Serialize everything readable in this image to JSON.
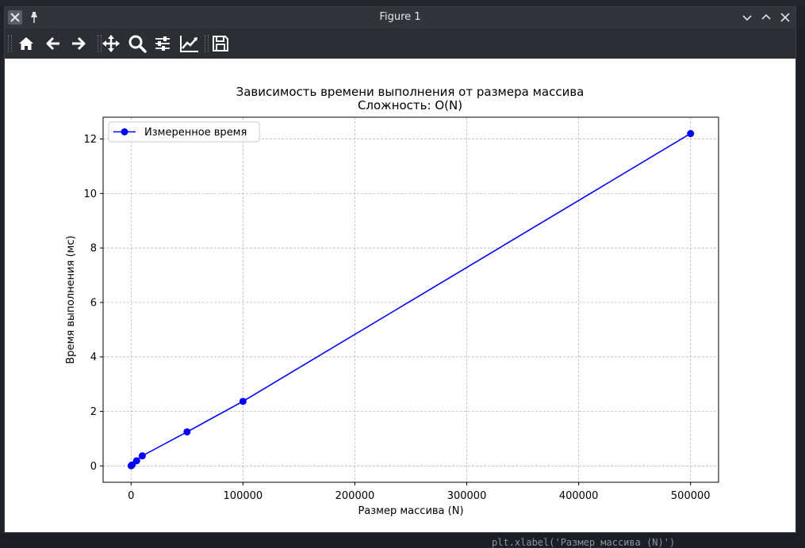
{
  "window": {
    "title": "Figure 1"
  },
  "background": {
    "code_bottom": "plt.xlabel('Размер массива (N)')"
  },
  "toolbar": {
    "buttons": [
      "home-icon",
      "back-arrow-icon",
      "forward-arrow-icon",
      "pan-icon",
      "zoom-icon",
      "configure-subplots-icon",
      "edit-axes-icon",
      "save-icon"
    ]
  },
  "chart_data": {
    "type": "line",
    "title": "Зависимость времени выполнения от размера массива",
    "subtitle": "Сложность: O(N)",
    "xlabel": "Размер массива (N)",
    "ylabel": "Время выполнения (мс)",
    "xlim": [
      -25000,
      525000
    ],
    "ylim": [
      -0.6,
      12.8
    ],
    "xticks": [
      0,
      100000,
      200000,
      300000,
      400000,
      500000
    ],
    "yticks": [
      0,
      2,
      4,
      6,
      8,
      10,
      12
    ],
    "grid": true,
    "legend": "top-left",
    "series": [
      {
        "name": "Измеренное время",
        "color": "#0000ff",
        "marker": "circle",
        "x": [
          100,
          1000,
          5000,
          10000,
          50000,
          100000,
          500000
        ],
        "y": [
          0.005,
          0.04,
          0.19,
          0.37,
          1.25,
          2.37,
          12.2
        ]
      }
    ]
  }
}
